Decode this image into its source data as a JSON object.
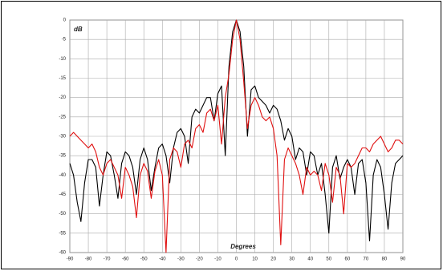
{
  "chart_data": {
    "type": "line",
    "ylabel": "dB",
    "xlabel": "Degrees",
    "xlim": [
      -90,
      90
    ],
    "ylim": [
      -60,
      0
    ],
    "xticks": [
      -90,
      -80,
      -70,
      -60,
      -50,
      -40,
      -30,
      -20,
      -10,
      0,
      10,
      20,
      30,
      40,
      50,
      60,
      70,
      80,
      90
    ],
    "yticks": [
      0,
      -5,
      -10,
      -15,
      -20,
      -25,
      -30,
      -35,
      -40,
      -45,
      -50,
      -55,
      -60
    ],
    "grid": true,
    "x": [
      -90,
      -88,
      -86,
      -84,
      -82,
      -80,
      -78,
      -76,
      -74,
      -72,
      -70,
      -68,
      -66,
      -64,
      -62,
      -60,
      -58,
      -56,
      -54,
      -52,
      -50,
      -48,
      -46,
      -44,
      -42,
      -40,
      -38,
      -36,
      -34,
      -32,
      -30,
      -28,
      -26,
      -24,
      -22,
      -20,
      -18,
      -16,
      -14,
      -12,
      -10,
      -8,
      -6,
      -4,
      -2,
      0,
      2,
      4,
      6,
      8,
      10,
      12,
      14,
      16,
      18,
      20,
      22,
      24,
      26,
      28,
      30,
      32,
      34,
      36,
      38,
      40,
      42,
      44,
      46,
      48,
      50,
      52,
      54,
      56,
      58,
      60,
      62,
      64,
      66,
      68,
      70,
      72,
      74,
      76,
      78,
      80,
      82,
      84,
      86,
      88,
      90
    ],
    "series": [
      {
        "color": "#000000",
        "values": [
          -37,
          -40,
          -47,
          -52,
          -42,
          -36,
          -36,
          -38,
          -48,
          -40,
          -34,
          -35,
          -40,
          -46,
          -37,
          -34,
          -35,
          -38,
          -45,
          -36,
          -33,
          -36,
          -44,
          -38,
          -33,
          -32,
          -35,
          -42,
          -33,
          -29,
          -28,
          -30,
          -37,
          -25,
          -23,
          -24,
          -22,
          -20,
          -20,
          -26,
          -19,
          -17,
          -35,
          -12,
          -3,
          0,
          -3,
          -12,
          -30,
          -18,
          -17,
          -20,
          -21,
          -22,
          -24,
          -22,
          -23,
          -26,
          -31,
          -28,
          -30,
          -36,
          -33,
          -34,
          -40,
          -34,
          -35,
          -40,
          -37,
          -45,
          -55,
          -38,
          -35,
          -41,
          -38,
          -36,
          -38,
          -45,
          -37,
          -36,
          -42,
          -57,
          -40,
          -36,
          -38,
          -45,
          -54,
          -42,
          -37,
          -36,
          -35
        ]
      },
      {
        "color": "#e01010",
        "values": [
          -30,
          -29,
          -30,
          -31,
          -32,
          -33,
          -32,
          -34,
          -38,
          -40,
          -37,
          -36,
          -38,
          -40,
          -46,
          -38,
          -40,
          -43,
          -51,
          -40,
          -37,
          -39,
          -46,
          -39,
          -36,
          -40,
          -60,
          -36,
          -33,
          -34,
          -38,
          -32,
          -31,
          -33,
          -28,
          -27,
          -29,
          -24,
          -23,
          -26,
          -22,
          -32,
          -20,
          -14,
          -5,
          0,
          -5,
          -16,
          -28,
          -22,
          -20,
          -22,
          -25,
          -26,
          -25,
          -28,
          -35,
          -58,
          -36,
          -33,
          -35,
          -37,
          -40,
          -45,
          -38,
          -40,
          -39,
          -40,
          -44,
          -37,
          -40,
          -47,
          -38,
          -40,
          -50,
          -37,
          -38,
          -37,
          -35,
          -33,
          -33,
          -34,
          -32,
          -31,
          -30,
          -32,
          -34,
          -33,
          -31,
          -31,
          -32
        ]
      }
    ]
  }
}
